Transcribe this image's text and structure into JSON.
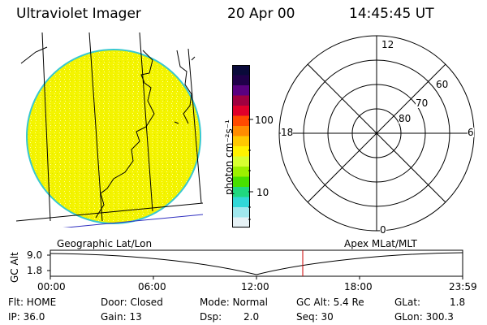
{
  "header": {
    "title": "Ultraviolet Imager",
    "date": "20 Apr 00",
    "time": "14:45:45 UT"
  },
  "colorbar": {
    "unit_label": "photon cm⁻²s⁻¹",
    "ticks": [
      "100",
      "10"
    ],
    "colors": [
      "#0a0a3a",
      "#20004a",
      "#5a0080",
      "#a00040",
      "#e0002a",
      "#ff4a00",
      "#ff8c00",
      "#ffc800",
      "#fff200",
      "#d8ff30",
      "#9cf000",
      "#48e000",
      "#20d880",
      "#30d8d8",
      "#a0e8ee",
      "#e6f2f6"
    ]
  },
  "polar_plot": {
    "mlt_labels": [
      "12",
      "18",
      "6",
      "0"
    ],
    "mlat_labels": [
      "60",
      "70",
      "80"
    ]
  },
  "timeline": {
    "left_label": "Geographic Lat/Lon",
    "right_label": "Apex MLat/MLT",
    "y_title": "GC Alt",
    "y_ticks": [
      "9.0",
      "1.8"
    ],
    "x_ticks": [
      "00:00",
      "06:00",
      "12:00",
      "18:00",
      "23:59"
    ],
    "marker_color": "#cc0000"
  },
  "info": {
    "flt": "Flt: HOME",
    "ip": "IP: 36.0",
    "door": "Door: Closed",
    "gain": "Gain: 13",
    "mode": "Mode: Normal",
    "dsp": "Dsp:",
    "dsp_val": "2.0",
    "gcalt": "GC Alt: 5.4 Re",
    "seq": "Seq: 30",
    "glat": "GLat:",
    "glat_val": "1.8",
    "glon": "GLon: 300.3"
  }
}
